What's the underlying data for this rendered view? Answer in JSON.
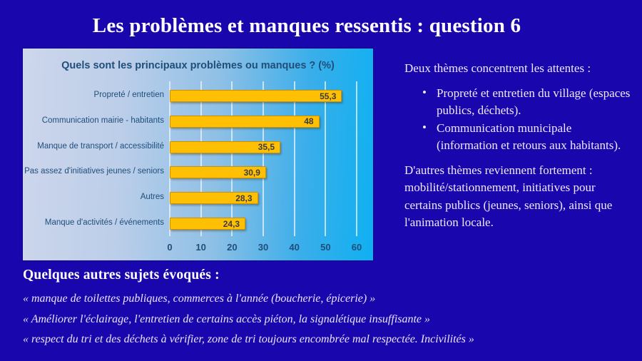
{
  "slide": {
    "title": "Les problèmes et manques ressentis : question 6",
    "background_color": "#1906ad"
  },
  "chart_data": {
    "type": "bar",
    "orientation": "horizontal",
    "title": "Quels sont les principaux problèmes ou manques ? (%)",
    "categories": [
      "Propreté / entretien",
      "Communication mairie - habitants",
      "Manque de transport / accessibilité",
      "Pas assez d'initiatives jeunes / seniors",
      "Autres",
      "Manque d'activités / événements"
    ],
    "values": [
      55.3,
      48,
      35.5,
      30.9,
      28.3,
      24.3
    ],
    "value_labels": [
      "55,3",
      "48",
      "35,5",
      "30,9",
      "28,3",
      "24,3"
    ],
    "xlim": [
      0,
      60
    ],
    "x_ticks": [
      0,
      10,
      20,
      30,
      40,
      50,
      60
    ],
    "grid": true,
    "legend": false,
    "bar_color": "#ffc003",
    "bar_border_color": "#cf9000",
    "label_color": "#1f4e79"
  },
  "right_panel": {
    "intro": "Deux thèmes concentrent les attentes :",
    "bullet_glyph": "•",
    "bullets": [
      "Propreté et entretien du village (espaces publics, déchets).",
      "Communication municipale (information et retours aux habitants)."
    ],
    "paragraph": "D'autres thèmes reviennent fortement : mobilité/stationnement, initiatives pour certains publics (jeunes, seniors), ainsi que l'animation locale."
  },
  "bottom_panel": {
    "heading": "Quelques autres sujets évoqués :",
    "quotes": [
      "« manque de toilettes publiques, commerces à l'année (boucherie, épicerie) »",
      "« Améliorer l'éclairage, l'entretien de certains accès piéton, la signalétique insuffisante »",
      "« respect du tri et des déchets à vérifier, zone de tri toujours encombrée mal respectée. Incivilités »"
    ]
  }
}
